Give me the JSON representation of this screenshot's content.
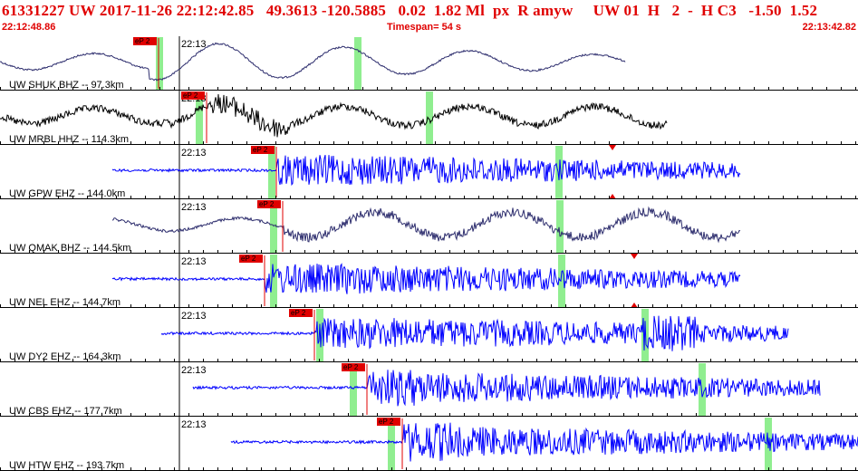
{
  "header": {
    "title": "61331227 UW 2017-11-26 22:12:42.85   49.3613 -120.5885   0.02  1.82 Ml  px  R amyw     UW 01  H   2  -  H C3   -1.50  1.52",
    "start_time": "22:12:48.86",
    "timespan": "Timespan=  54 s",
    "end_time": "22:13:42.82"
  },
  "minute_label": "22:13",
  "pick_label": "eP 2",
  "colors": {
    "header_text": "#e00000",
    "pick_box": "#e00000",
    "trace_broadband": "#2e2e6e",
    "trace_short_period": "#0000ff",
    "trace_black": "#000000",
    "phase_marker": "#90ee90",
    "divider": "#000000"
  },
  "channels": [
    {
      "label": "UW SHUK BHZ -- 97.3km",
      "trace_color": "#2e2e6e"
    },
    {
      "label": "UW MRBL HHZ -- 114.3km",
      "trace_color": "#000000"
    },
    {
      "label": "UW GPW EHZ -- 144.0km",
      "trace_color": "#0000ff"
    },
    {
      "label": "UW QMAK BHZ -- 144.5km",
      "trace_color": "#2e2e6e"
    },
    {
      "label": "UW NEL EHZ -- 144.7km",
      "trace_color": "#0000ff"
    },
    {
      "label": "UW DY2 EHZ -- 164.3km",
      "trace_color": "#0000ff"
    },
    {
      "label": "UW CBS EHZ -- 177.7km",
      "trace_color": "#0000ff"
    },
    {
      "label": "UW HTW EHZ -- 193.7km",
      "trace_color": "#0000ff"
    }
  ]
}
